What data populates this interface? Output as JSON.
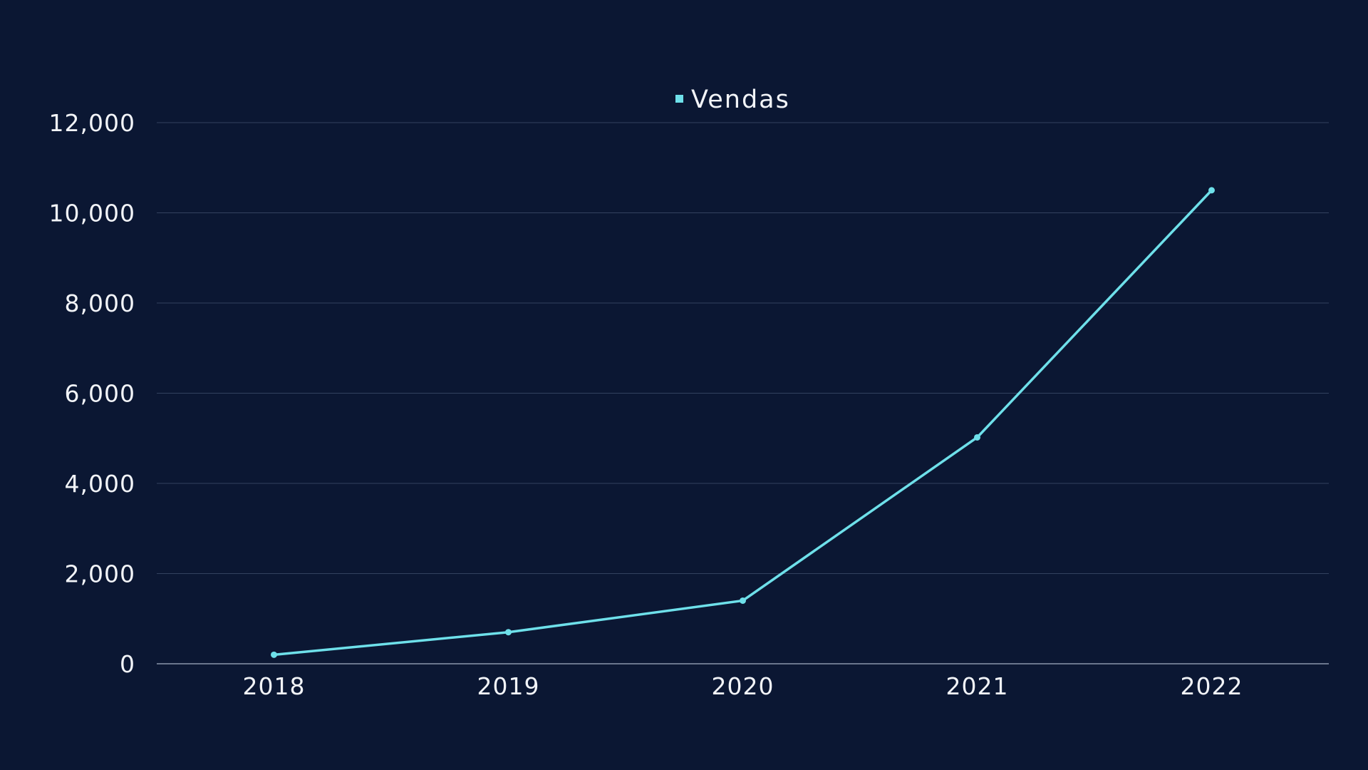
{
  "chart_data": {
    "type": "line",
    "categories": [
      "2018",
      "2019",
      "2020",
      "2021",
      "2022"
    ],
    "series": [
      {
        "name": "Vendas",
        "values": [
          200,
          700,
          1400,
          5020,
          10500
        ],
        "color": "#6ee0ea"
      }
    ],
    "ylim": [
      0,
      12000
    ],
    "yticks": [
      0,
      2000,
      4000,
      6000,
      8000,
      10000,
      12000
    ],
    "ytick_labels": [
      "0",
      "2,000",
      "4,000",
      "6,000",
      "8,000",
      "10,000",
      "12,000"
    ],
    "grid": true,
    "legend_position": "top-center",
    "background_color": "#0b1733",
    "gridline_color": "#33425f",
    "text_color": "#f2f4f8"
  }
}
